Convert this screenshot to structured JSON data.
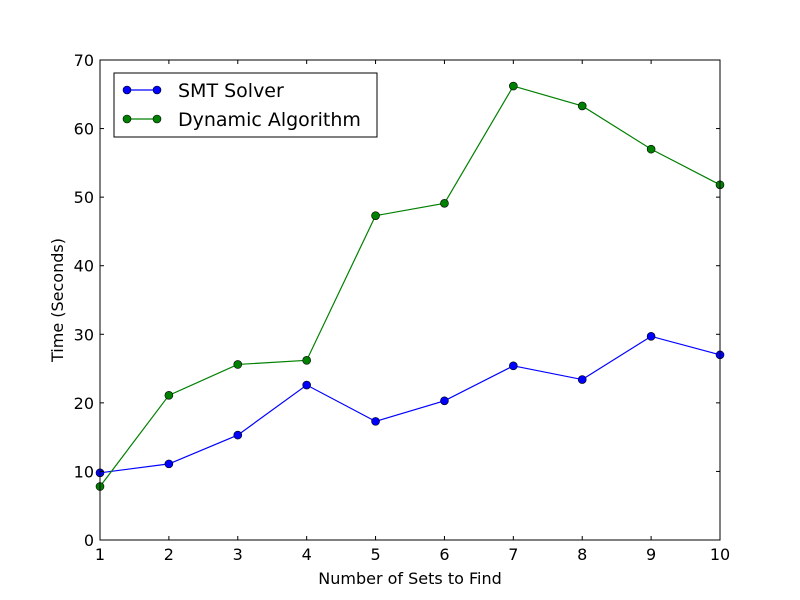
{
  "chart_data": {
    "type": "line",
    "xlabel": "Number of Sets to Find",
    "ylabel": "Time (Seconds)",
    "xlim": [
      1,
      10
    ],
    "ylim": [
      0,
      70
    ],
    "xticks": [
      1,
      2,
      3,
      4,
      5,
      6,
      7,
      8,
      9,
      10
    ],
    "yticks": [
      0,
      10,
      20,
      30,
      40,
      50,
      60,
      70
    ],
    "grid": false,
    "legend_position": "top-left",
    "x": [
      1,
      2,
      3,
      4,
      5,
      6,
      7,
      8,
      9,
      10
    ],
    "series": [
      {
        "name": "SMT Solver",
        "color": "#0000ff",
        "marker": "circle",
        "values": [
          9.8,
          11.1,
          15.3,
          22.6,
          17.3,
          20.3,
          25.4,
          23.4,
          29.7,
          27.0
        ]
      },
      {
        "name": "Dynamic Algorithm",
        "color": "#008000",
        "marker": "circle",
        "values": [
          7.8,
          21.1,
          25.6,
          26.2,
          47.3,
          49.1,
          66.2,
          63.3,
          57.0,
          51.8
        ]
      }
    ]
  }
}
